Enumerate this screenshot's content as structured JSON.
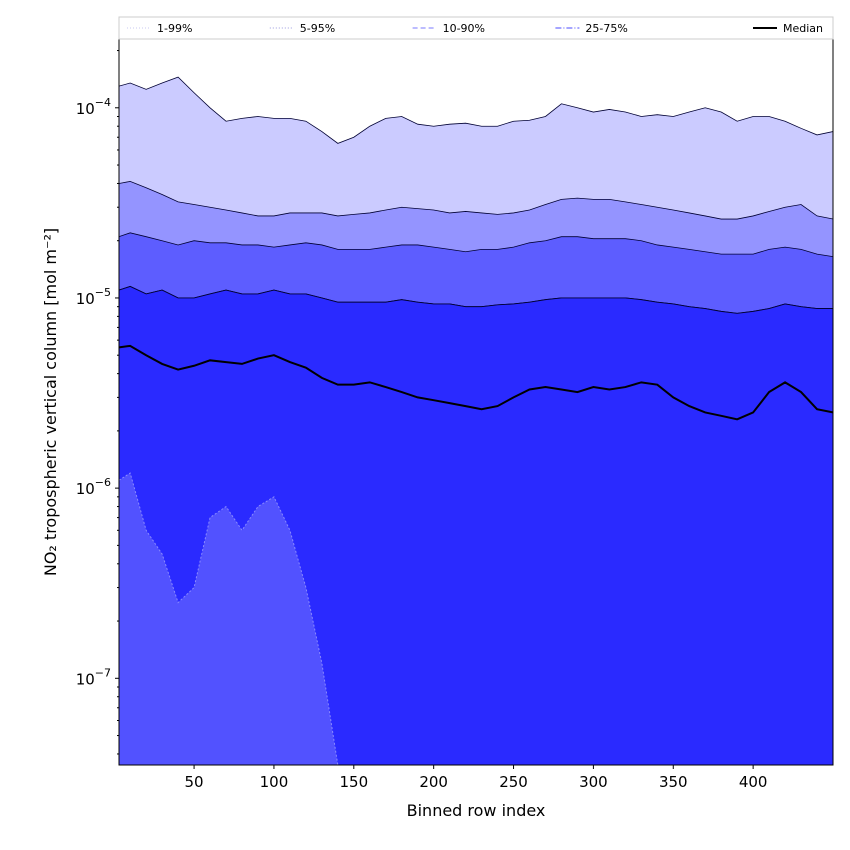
{
  "chart_data": {
    "type": "area",
    "title": "",
    "xlabel": "Binned row index",
    "ylabel": "NO₂ tropospheric vertical column [mol m⁻²]",
    "xlim": [
      3,
      450
    ],
    "ylim": [
      3.5e-08,
      0.00023
    ],
    "yscale": "log",
    "grid": false,
    "legend_position": "top",
    "x_ticks": [
      50,
      100,
      150,
      200,
      250,
      300,
      350,
      400
    ],
    "x_tick_labels": [
      "50",
      "100",
      "150",
      "200",
      "250",
      "300",
      "350",
      "400"
    ],
    "y_ticks": [
      1e-07,
      1e-06,
      1e-05,
      0.0001
    ],
    "y_tick_labels": [
      {
        "base": "10",
        "exp": "−7"
      },
      {
        "base": "10",
        "exp": "−6"
      },
      {
        "base": "10",
        "exp": "−5"
      },
      {
        "base": "10",
        "exp": "−4"
      }
    ],
    "x": [
      3,
      10,
      20,
      30,
      40,
      50,
      60,
      70,
      80,
      90,
      100,
      110,
      120,
      130,
      140,
      150,
      160,
      170,
      180,
      190,
      200,
      210,
      220,
      230,
      240,
      250,
      260,
      270,
      280,
      290,
      300,
      310,
      320,
      330,
      340,
      350,
      360,
      370,
      380,
      390,
      400,
      410,
      420,
      430,
      440,
      450
    ],
    "series": [
      {
        "name": "1-99%",
        "line_color": "#c8c8f0",
        "fill_color": "#5050ff",
        "line_style": "dotted",
        "upper": [
          0.00013,
          0.000135,
          0.000125,
          0.000135,
          0.000145,
          0.00012,
          0.0001,
          8.5e-05,
          8.8e-05,
          9e-05,
          8.8e-05,
          8.8e-05,
          8.5e-05,
          7.5e-05,
          6.5e-05,
          7e-05,
          8e-05,
          8.8e-05,
          9e-05,
          8.2e-05,
          8e-05,
          8.2e-05,
          8.3e-05,
          8e-05,
          8e-05,
          8.5e-05,
          8.6e-05,
          9e-05,
          0.000105,
          0.0001,
          9.5e-05,
          9.8e-05,
          9.5e-05,
          9e-05,
          9.2e-05,
          9e-05,
          9.5e-05,
          0.0001,
          9.5e-05,
          8.5e-05,
          9e-05,
          9e-05,
          8.5e-05,
          7.8e-05,
          7.2e-05,
          7.5e-05
        ],
        "lower": [
          1.1e-06,
          1.2e-06,
          6e-07,
          4.5e-07,
          2.5e-07,
          3e-07,
          7e-07,
          8e-07,
          6e-07,
          8e-07,
          9e-07,
          6e-07,
          3e-07,
          1.2e-07,
          3.5e-08,
          3.5e-08,
          3.5e-08,
          3.5e-08,
          3.5e-08,
          3.5e-08,
          3.5e-08,
          3.5e-08,
          3.5e-08,
          3.5e-08,
          3.5e-08,
          3.5e-08,
          3.5e-08,
          3.5e-08,
          3.5e-08,
          3.5e-08,
          3.5e-08,
          3.5e-08,
          3.5e-08,
          3.5e-08,
          3.5e-08,
          3.5e-08,
          3.5e-08,
          3.5e-08,
          3.5e-08,
          3.5e-08,
          3.5e-08,
          3.5e-08,
          3.5e-08,
          3.5e-08,
          3.5e-08,
          3.5e-08
        ]
      },
      {
        "name": "5-95%",
        "line_color": "#9a9ae0",
        "fill_color": "#4545ff",
        "line_style": "dotted",
        "upper": [
          4e-05,
          4.1e-05,
          3.8e-05,
          3.5e-05,
          3.2e-05,
          3.1e-05,
          3e-05,
          2.9e-05,
          2.8e-05,
          2.7e-05,
          2.7e-05,
          2.8e-05,
          2.8e-05,
          2.8e-05,
          2.7e-05,
          2.75e-05,
          2.8e-05,
          2.9e-05,
          3e-05,
          2.95e-05,
          2.9e-05,
          2.8e-05,
          2.85e-05,
          2.8e-05,
          2.75e-05,
          2.8e-05,
          2.9e-05,
          3.1e-05,
          3.3e-05,
          3.35e-05,
          3.3e-05,
          3.3e-05,
          3.2e-05,
          3.1e-05,
          3e-05,
          2.9e-05,
          2.8e-05,
          2.7e-05,
          2.6e-05,
          2.6e-05,
          2.7e-05,
          2.85e-05,
          3e-05,
          3.1e-05,
          2.7e-05,
          2.6e-05
        ],
        "lower": [
          3.5e-08,
          3.5e-08,
          3.5e-08,
          3.5e-08,
          3.5e-08,
          3.5e-08,
          3.5e-08,
          3.5e-08,
          3.5e-08,
          3.5e-08,
          3.5e-08,
          3.5e-08,
          3.5e-08,
          3.5e-08,
          3.5e-08,
          3.5e-08,
          3.5e-08,
          3.5e-08,
          3.5e-08,
          3.5e-08,
          3.5e-08,
          3.5e-08,
          3.5e-08,
          3.5e-08,
          3.5e-08,
          3.5e-08,
          3.5e-08,
          3.5e-08,
          3.5e-08,
          3.5e-08,
          3.5e-08,
          3.5e-08,
          3.5e-08,
          3.5e-08,
          3.5e-08,
          3.5e-08,
          3.5e-08,
          3.5e-08,
          3.5e-08,
          3.5e-08,
          3.5e-08,
          3.5e-08,
          3.5e-08,
          3.5e-08,
          3.5e-08,
          3.5e-08
        ]
      },
      {
        "name": "10-90%",
        "line_color": "#7a7aff",
        "fill_color": "#3c3cff",
        "line_style": "dashed",
        "upper": [
          2.1e-05,
          2.2e-05,
          2.1e-05,
          2e-05,
          1.9e-05,
          2e-05,
          1.95e-05,
          1.95e-05,
          1.9e-05,
          1.9e-05,
          1.85e-05,
          1.9e-05,
          1.95e-05,
          1.9e-05,
          1.8e-05,
          1.8e-05,
          1.8e-05,
          1.85e-05,
          1.9e-05,
          1.9e-05,
          1.85e-05,
          1.8e-05,
          1.75e-05,
          1.8e-05,
          1.8e-05,
          1.85e-05,
          1.95e-05,
          2e-05,
          2.1e-05,
          2.1e-05,
          2.05e-05,
          2.05e-05,
          2.05e-05,
          2e-05,
          1.9e-05,
          1.85e-05,
          1.8e-05,
          1.75e-05,
          1.7e-05,
          1.7e-05,
          1.7e-05,
          1.8e-05,
          1.85e-05,
          1.8e-05,
          1.7e-05,
          1.65e-05
        ],
        "lower": [
          3.5e-08,
          3.5e-08,
          3.5e-08,
          3.5e-08,
          3.5e-08,
          3.5e-08,
          3.5e-08,
          3.5e-08,
          3.5e-08,
          3.5e-08,
          3.5e-08,
          3.5e-08,
          3.5e-08,
          3.5e-08,
          3.5e-08,
          3.5e-08,
          3.5e-08,
          3.5e-08,
          3.5e-08,
          3.5e-08,
          3.5e-08,
          3.5e-08,
          3.5e-08,
          3.5e-08,
          3.5e-08,
          3.5e-08,
          3.5e-08,
          3.5e-08,
          3.5e-08,
          3.5e-08,
          3.5e-08,
          3.5e-08,
          3.5e-08,
          3.5e-08,
          3.5e-08,
          3.5e-08,
          3.5e-08,
          3.5e-08,
          3.5e-08,
          3.5e-08,
          3.5e-08,
          3.5e-08,
          3.5e-08,
          3.5e-08,
          3.5e-08,
          3.5e-08
        ]
      },
      {
        "name": "25-75%",
        "line_color": "#4b4bff",
        "fill_color": "#2f2fff",
        "line_style": "dashdot",
        "upper": [
          1.1e-05,
          1.15e-05,
          1.05e-05,
          1.1e-05,
          1e-05,
          1e-05,
          1.05e-05,
          1.1e-05,
          1.05e-05,
          1.05e-05,
          1.1e-05,
          1.05e-05,
          1.05e-05,
          1e-05,
          9.5e-06,
          9.5e-06,
          9.5e-06,
          9.5e-06,
          9.8e-06,
          9.5e-06,
          9.3e-06,
          9.3e-06,
          9e-06,
          9e-06,
          9.2e-06,
          9.3e-06,
          9.5e-06,
          9.8e-06,
          1e-05,
          1e-05,
          1e-05,
          1e-05,
          1e-05,
          9.8e-06,
          9.5e-06,
          9.3e-06,
          9e-06,
          8.8e-06,
          8.5e-06,
          8.3e-06,
          8.5e-06,
          8.8e-06,
          9.3e-06,
          9e-06,
          8.8e-06,
          8.8e-06
        ],
        "lower": [
          3.5e-08,
          3.5e-08,
          3.5e-08,
          3.5e-08,
          3.5e-08,
          3.5e-08,
          3.5e-08,
          3.5e-08,
          3.5e-08,
          3.5e-08,
          3.5e-08,
          3.5e-08,
          3.5e-08,
          3.5e-08,
          3.5e-08,
          3.5e-08,
          3.5e-08,
          3.5e-08,
          3.5e-08,
          3.5e-08,
          3.5e-08,
          3.5e-08,
          3.5e-08,
          3.5e-08,
          3.5e-08,
          3.5e-08,
          3.5e-08,
          3.5e-08,
          3.5e-08,
          3.5e-08,
          3.5e-08,
          3.5e-08,
          3.5e-08,
          3.5e-08,
          3.5e-08,
          3.5e-08,
          3.5e-08,
          3.5e-08,
          3.5e-08,
          3.5e-08,
          3.5e-08,
          3.5e-08,
          3.5e-08,
          3.5e-08,
          3.5e-08,
          3.5e-08
        ]
      },
      {
        "name": "Median",
        "line_color": "#000000",
        "line_style": "solid",
        "values": [
          5.5e-06,
          5.6e-06,
          5e-06,
          4.5e-06,
          4.2e-06,
          4.4e-06,
          4.7e-06,
          4.6e-06,
          4.5e-06,
          4.8e-06,
          5e-06,
          4.6e-06,
          4.3e-06,
          3.8e-06,
          3.5e-06,
          3.5e-06,
          3.6e-06,
          3.4e-06,
          3.2e-06,
          3e-06,
          2.9e-06,
          2.8e-06,
          2.7e-06,
          2.6e-06,
          2.7e-06,
          3e-06,
          3.3e-06,
          3.4e-06,
          3.3e-06,
          3.2e-06,
          3.4e-06,
          3.3e-06,
          3.4e-06,
          3.6e-06,
          3.5e-06,
          3e-06,
          2.7e-06,
          2.5e-06,
          2.4e-06,
          2.3e-06,
          2.5e-06,
          3.2e-06,
          3.6e-06,
          3.2e-06,
          2.6e-06,
          2.5e-06
        ]
      }
    ],
    "background_fill_color": "#2a2aff"
  }
}
